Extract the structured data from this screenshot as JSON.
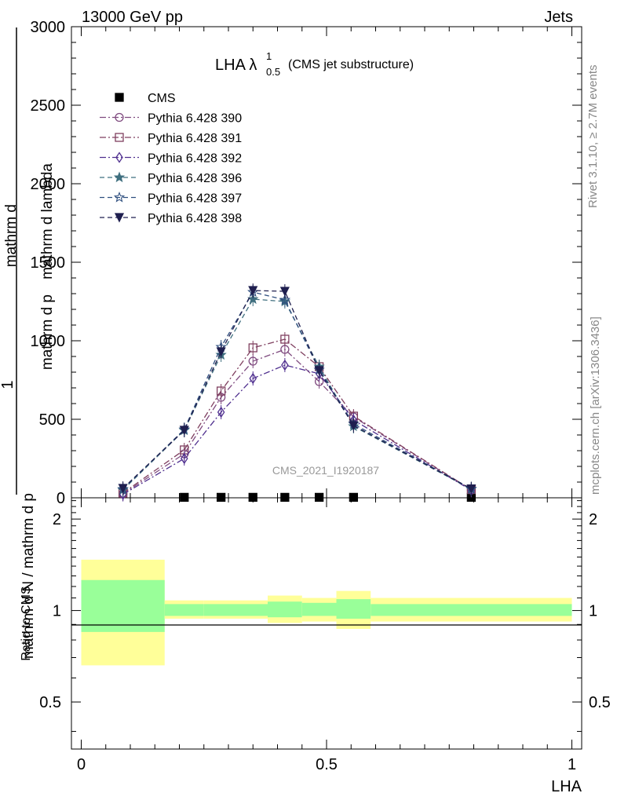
{
  "header": {
    "left": "13000 GeV pp",
    "right": "Jets"
  },
  "side_labels": {
    "rivet": "Rivet 3.1.10, ≥ 2.7M events",
    "mcplots": "mcplots.cern.ch [arXiv:1306.3436]"
  },
  "watermark": "CMS_2021_I1920187",
  "main_title": {
    "text": "LHA λ",
    "sup": "1",
    "sub": "0.5",
    "suffix": "(CMS jet substructure)"
  },
  "colors": {
    "green_band": "#99ff99",
    "yellow_band": "#ffff99",
    "grid": "#000000"
  },
  "chart_data": [
    {
      "type": "line",
      "panel": "main",
      "ylabel_parts": {
        "numerator": "1",
        "denominator": "mathrm d N / mathrm d p",
        "sub": "T",
        "frac2_num": "mathrm d",
        "frac2_sup": "2",
        "frac2_num_rest": "N",
        "frac2_den": "mathrm d p",
        "frac2_den_sub": "T",
        "frac2_den_rest": " mathrm d lambda"
      },
      "xlim": [
        -0.02,
        1.02
      ],
      "ylim": [
        0,
        3000
      ],
      "yticks": [
        0,
        500,
        1000,
        1500,
        2000,
        2500,
        3000
      ],
      "ytick_labels": [
        "0",
        "500",
        "1000",
        "1500",
        "2000",
        "2500",
        "3000"
      ],
      "legend_position": "top-left",
      "series": [
        {
          "name": "CMS",
          "marker": "square-filled",
          "color": "#000000",
          "dash": "none",
          "x": [
            0.21,
            0.285,
            0.35,
            0.415,
            0.485,
            0.555,
            0.795
          ],
          "y": [
            3,
            3,
            3,
            3,
            3,
            3,
            3
          ]
        },
        {
          "name": "Pythia 6.428 390",
          "marker": "circle-open",
          "color": "#7f4a7f",
          "dash": "8,3,2,3",
          "x": [
            0.085,
            0.21,
            0.285,
            0.35,
            0.415,
            0.485,
            0.555,
            0.795
          ],
          "y": [
            25,
            280,
            640,
            870,
            945,
            740,
            515,
            50
          ]
        },
        {
          "name": "Pythia 6.428 391",
          "marker": "square-open",
          "color": "#7f3f5f",
          "dash": "8,3,2,3",
          "x": [
            0.085,
            0.21,
            0.285,
            0.35,
            0.415,
            0.485,
            0.555,
            0.795
          ],
          "y": [
            30,
            305,
            680,
            955,
            1010,
            835,
            520,
            52
          ]
        },
        {
          "name": "Pythia 6.428 392",
          "marker": "diamond-open",
          "color": "#4f2f8f",
          "dash": "8,3,2,3",
          "x": [
            0.085,
            0.21,
            0.285,
            0.35,
            0.415,
            0.485,
            0.555,
            0.795
          ],
          "y": [
            22,
            250,
            545,
            760,
            845,
            790,
            495,
            48
          ]
        },
        {
          "name": "Pythia 6.428 396",
          "marker": "star-filled",
          "color": "#3f6f7f",
          "dash": "6,4",
          "x": [
            0.085,
            0.21,
            0.285,
            0.35,
            0.415,
            0.485,
            0.555,
            0.795
          ],
          "y": [
            50,
            430,
            910,
            1265,
            1250,
            835,
            455,
            55
          ]
        },
        {
          "name": "Pythia 6.428 397",
          "marker": "star-open",
          "color": "#2f4f7f",
          "dash": "6,4",
          "x": [
            0.085,
            0.21,
            0.285,
            0.35,
            0.415,
            0.485,
            0.555,
            0.795
          ],
          "y": [
            55,
            435,
            960,
            1310,
            1260,
            815,
            470,
            57
          ]
        },
        {
          "name": "Pythia 6.428 398",
          "marker": "triangle-down-filled",
          "color": "#1f1f4f",
          "dash": "6,4",
          "x": [
            0.085,
            0.21,
            0.285,
            0.35,
            0.415,
            0.485,
            0.555,
            0.795
          ],
          "y": [
            60,
            430,
            930,
            1320,
            1315,
            810,
            460,
            57
          ]
        }
      ]
    },
    {
      "type": "area",
      "panel": "ratio",
      "xlabel": "LHA",
      "ylabel": "Ratio to CMS",
      "xlim": [
        -0.02,
        1.02
      ],
      "xticks": [
        0,
        0.5,
        1
      ],
      "xtick_labels": [
        "0",
        "0.5",
        "1"
      ],
      "ylim": [
        0.35,
        2.35
      ],
      "yticks": [
        0.5,
        1,
        2
      ],
      "ytick_labels": [
        "0.5",
        "1",
        "2"
      ],
      "reference_line": 1,
      "bins": [
        {
          "x0": 0.0,
          "x1": 0.17,
          "green": [
            0.85,
            1.26
          ],
          "yellow": [
            0.66,
            1.47
          ]
        },
        {
          "x0": 0.17,
          "x1": 0.25,
          "green": [
            0.96,
            1.05
          ],
          "yellow": [
            0.94,
            1.08
          ]
        },
        {
          "x0": 0.25,
          "x1": 0.32,
          "green": [
            0.96,
            1.05
          ],
          "yellow": [
            0.94,
            1.08
          ]
        },
        {
          "x0": 0.32,
          "x1": 0.38,
          "green": [
            0.96,
            1.05
          ],
          "yellow": [
            0.94,
            1.08
          ]
        },
        {
          "x0": 0.38,
          "x1": 0.45,
          "green": [
            0.95,
            1.07
          ],
          "yellow": [
            0.91,
            1.12
          ]
        },
        {
          "x0": 0.45,
          "x1": 0.52,
          "green": [
            0.96,
            1.06
          ],
          "yellow": [
            0.92,
            1.1
          ]
        },
        {
          "x0": 0.52,
          "x1": 0.59,
          "green": [
            0.94,
            1.09
          ],
          "yellow": [
            0.87,
            1.16
          ]
        },
        {
          "x0": 0.59,
          "x1": 1.0,
          "green": [
            0.96,
            1.05
          ],
          "yellow": [
            0.92,
            1.1
          ]
        }
      ]
    }
  ]
}
